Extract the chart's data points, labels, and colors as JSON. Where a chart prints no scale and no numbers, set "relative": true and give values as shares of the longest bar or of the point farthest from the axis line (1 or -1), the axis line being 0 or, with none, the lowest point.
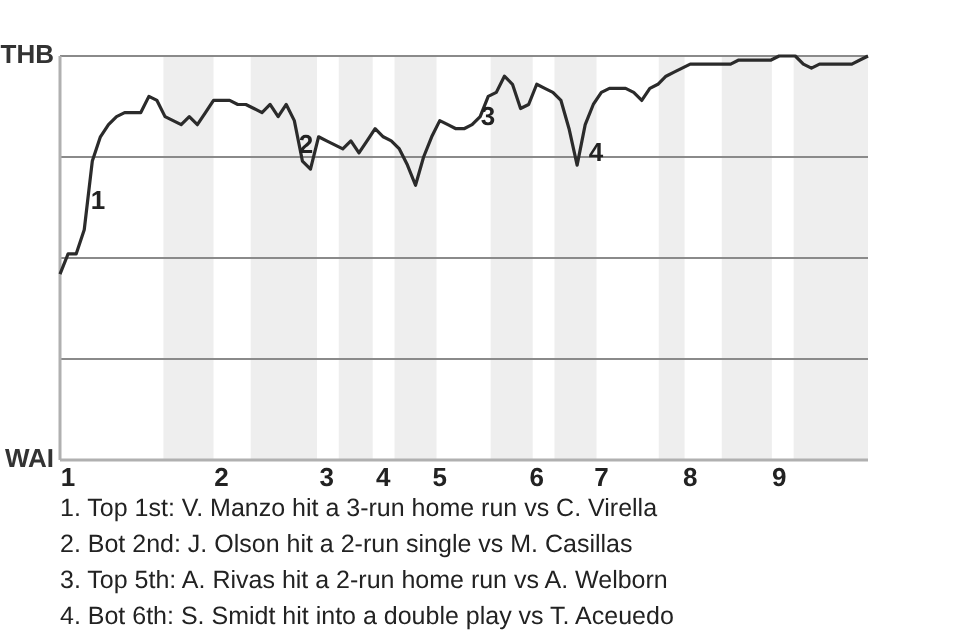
{
  "chart_data": {
    "type": "line",
    "relative": true,
    "categories": [
      null,
      "1",
      null,
      null,
      null,
      null,
      null,
      null,
      null,
      null,
      null,
      null,
      null,
      null,
      null,
      null,
      null,
      null,
      null,
      null,
      "2",
      null,
      null,
      null,
      null,
      null,
      null,
      null,
      null,
      null,
      null,
      null,
      null,
      "3",
      null,
      null,
      null,
      null,
      null,
      null,
      "4",
      null,
      null,
      null,
      null,
      null,
      null,
      "5",
      null,
      null,
      null,
      null,
      null,
      null,
      null,
      null,
      null,
      null,
      null,
      "6",
      null,
      null,
      null,
      null,
      null,
      null,
      null,
      "7",
      null,
      null,
      null,
      null,
      null,
      null,
      null,
      null,
      null,
      null,
      "8",
      null,
      null,
      null,
      null,
      null,
      null,
      null,
      null,
      null,
      null,
      "9",
      null,
      null,
      null,
      null,
      null,
      null,
      null,
      null,
      null,
      null,
      null
    ],
    "grid": "y",
    "marker": "none",
    "line_style": "solid",
    "series": [
      {
        "color": "#2b2b2b",
        "values": [
          0.46,
          0.51,
          0.51,
          0.57,
          0.74,
          0.8,
          0.83,
          0.85,
          0.86,
          0.86,
          0.86,
          0.9,
          0.89,
          0.85,
          0.84,
          0.83,
          0.85,
          0.83,
          0.86,
          0.89,
          0.89,
          0.89,
          0.88,
          0.88,
          0.87,
          0.86,
          0.88,
          0.85,
          0.88,
          0.84,
          0.74,
          0.72,
          0.8,
          0.79,
          0.78,
          0.77,
          0.79,
          0.76,
          0.79,
          0.82,
          0.8,
          0.79,
          0.77,
          0.73,
          0.68,
          0.75,
          0.8,
          0.84,
          0.83,
          0.82,
          0.82,
          0.83,
          0.85,
          0.9,
          0.91,
          0.95,
          0.93,
          0.87,
          0.88,
          0.93,
          0.92,
          0.91,
          0.89,
          0.82,
          0.73,
          0.83,
          0.88,
          0.91,
          0.92,
          0.92,
          0.92,
          0.91,
          0.89,
          0.92,
          0.93,
          0.95,
          0.96,
          0.97,
          0.98,
          0.98,
          0.98,
          0.98,
          0.98,
          0.98,
          0.99,
          0.99,
          0.99,
          0.99,
          0.99,
          1.0,
          1.0,
          1.0,
          0.98,
          0.97,
          0.98,
          0.98,
          0.98,
          0.98,
          0.98,
          0.99,
          1.0
        ]
      }
    ],
    "annotations": [
      "THB",
      "WAI",
      "1",
      "2",
      "3",
      "4",
      "1. Top 1st: V. Manzo hit a 3-run home run vs C. Virella",
      "2. Bot 2nd: J. Olson hit a 2-run single vs M. Casillas",
      "3. Top 5th: A. Rivas hit a 2-run home run vs A. Welborn",
      "4. Bot 6th: S. Smidt hit into a double play vs T. Aceuedo"
    ]
  }
}
